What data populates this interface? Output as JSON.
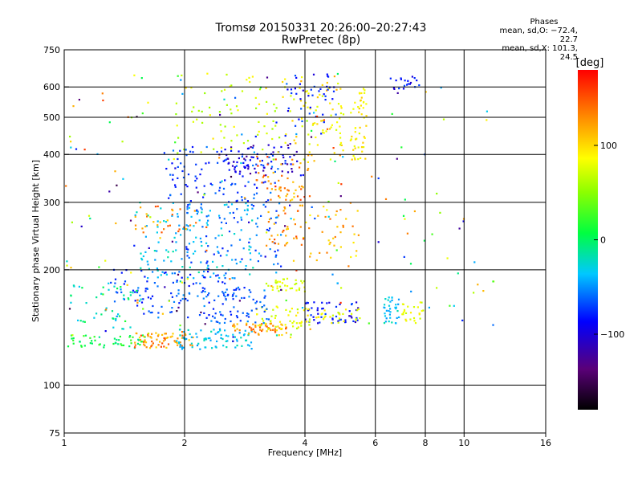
{
  "chart_data": {
    "type": "scatter",
    "title": "Tromsø 20150331 20:26:00–20:27:43",
    "subtitle": "RwPretec (8p)",
    "xlabel": "Frequency [MHz]",
    "ylabel": "Stationary phase Virtual Height [km]",
    "x_scale": "log",
    "y_scale": "log",
    "xlim": [
      1,
      16
    ],
    "ylim": [
      75,
      750
    ],
    "xticks": [
      1,
      2,
      4,
      6,
      8,
      10,
      16
    ],
    "xtick_labels": [
      "1",
      "2",
      "4",
      "6",
      "8",
      "10",
      "16"
    ],
    "xgrid": [
      2,
      4,
      6,
      8,
      10
    ],
    "yticks": [
      75,
      100,
      200,
      300,
      400,
      500,
      600,
      750
    ],
    "ytick_labels": [
      "75",
      "100",
      "200",
      "300",
      "400",
      "500",
      "600",
      "750"
    ],
    "ygrid": [
      100,
      200,
      300,
      400,
      500,
      600
    ],
    "grid": true,
    "legend": {
      "title": "Phases",
      "line1": "mean, sd,O: −72.4, 22.7",
      "line2": "mean, sd,X: 101.3, 24.5"
    },
    "colorbar": {
      "label": "[deg]",
      "range": [
        -180,
        180
      ],
      "ticks": [
        100,
        0,
        -100
      ],
      "tick_labels": [
        "100",
        "0",
        "−100"
      ],
      "colormap": "rainbow"
    },
    "point_clusters": [
      {
        "x": [
          1.0,
          1.6
        ],
        "y": [
          125,
          135
        ],
        "phase": [
          -20,
          20
        ],
        "n": 50
      },
      {
        "x": [
          1.5,
          2.1
        ],
        "y": [
          125,
          138
        ],
        "phase": [
          110,
          160
        ],
        "n": 70
      },
      {
        "x": [
          1.9,
          3.0
        ],
        "y": [
          124,
          140
        ],
        "phase": [
          -60,
          -20
        ],
        "n": 80
      },
      {
        "x": [
          2.6,
          3.6
        ],
        "y": [
          135,
          145
        ],
        "phase": [
          110,
          160
        ],
        "n": 55
      },
      {
        "x": [
          3.0,
          4.1
        ],
        "y": [
          140,
          160
        ],
        "phase": [
          60,
          110
        ],
        "n": 45
      },
      {
        "x": [
          3.9,
          5.5
        ],
        "y": [
          145,
          165
        ],
        "phase": [
          -140,
          -90
        ],
        "n": 50
      },
      {
        "x": [
          3.8,
          5.6
        ],
        "y": [
          145,
          158
        ],
        "phase": [
          70,
          110
        ],
        "n": 35
      },
      {
        "x": [
          1.3,
          2.6
        ],
        "y": [
          150,
          200
        ],
        "phase": [
          -120,
          -60
        ],
        "n": 110
      },
      {
        "x": [
          2.2,
          3.3
        ],
        "y": [
          145,
          180
        ],
        "phase": [
          -110,
          -60
        ],
        "n": 70
      },
      {
        "x": [
          1.0,
          1.6
        ],
        "y": [
          140,
          185
        ],
        "phase": [
          -40,
          0
        ],
        "n": 40
      },
      {
        "x": [
          3.2,
          4.0
        ],
        "y": [
          175,
          190
        ],
        "phase": [
          60,
          100
        ],
        "n": 35
      },
      {
        "x": [
          1.5,
          3.0
        ],
        "y": [
          190,
          300
        ],
        "phase": [
          -60,
          -20
        ],
        "n": 120
      },
      {
        "x": [
          2.0,
          3.5
        ],
        "y": [
          200,
          300
        ],
        "phase": [
          -110,
          -60
        ],
        "n": 80
      },
      {
        "x": [
          1.5,
          2.3
        ],
        "y": [
          250,
          300
        ],
        "phase": [
          110,
          160
        ],
        "n": 30
      },
      {
        "x": [
          3.2,
          4.0
        ],
        "y": [
          230,
          330
        ],
        "phase": [
          110,
          160
        ],
        "n": 60
      },
      {
        "x": [
          4.0,
          5.5
        ],
        "y": [
          200,
          300
        ],
        "phase": [
          100,
          150
        ],
        "n": 40
      },
      {
        "x": [
          1.8,
          3.6
        ],
        "y": [
          300,
          420
        ],
        "phase": [
          -120,
          -70
        ],
        "n": 110
      },
      {
        "x": [
          2.5,
          4.0
        ],
        "y": [
          350,
          430
        ],
        "phase": [
          -150,
          -110
        ],
        "n": 60
      },
      {
        "x": [
          3.0,
          4.2
        ],
        "y": [
          300,
          400
        ],
        "phase": [
          120,
          170
        ],
        "n": 40
      },
      {
        "x": [
          1.9,
          3.5
        ],
        "y": [
          400,
          650
        ],
        "phase": [
          40,
          110
        ],
        "n": 70
      },
      {
        "x": [
          3.5,
          5.0
        ],
        "y": [
          380,
          640
        ],
        "phase": [
          70,
          130
        ],
        "n": 80
      },
      {
        "x": [
          3.6,
          4.8
        ],
        "y": [
          450,
          650
        ],
        "phase": [
          -130,
          -80
        ],
        "n": 40
      },
      {
        "x": [
          5.2,
          5.7
        ],
        "y": [
          380,
          600
        ],
        "phase": [
          80,
          120
        ],
        "n": 50
      },
      {
        "x": [
          6.3,
          6.9
        ],
        "y": [
          145,
          170
        ],
        "phase": [
          -60,
          -20
        ],
        "n": 35
      },
      {
        "x": [
          7.0,
          7.9
        ],
        "y": [
          145,
          165
        ],
        "phase": [
          60,
          110
        ],
        "n": 25
      },
      {
        "x": [
          6.5,
          7.8
        ],
        "y": [
          590,
          640
        ],
        "phase": [
          -140,
          -90
        ],
        "n": 20
      },
      {
        "x": [
          5.5,
          12.0
        ],
        "y": [
          120,
          600
        ],
        "phase": [
          -150,
          150
        ],
        "n": 45
      },
      {
        "x": [
          1.0,
          5.0
        ],
        "y": [
          130,
          650
        ],
        "phase": [
          -170,
          170
        ],
        "n": 170
      }
    ]
  }
}
